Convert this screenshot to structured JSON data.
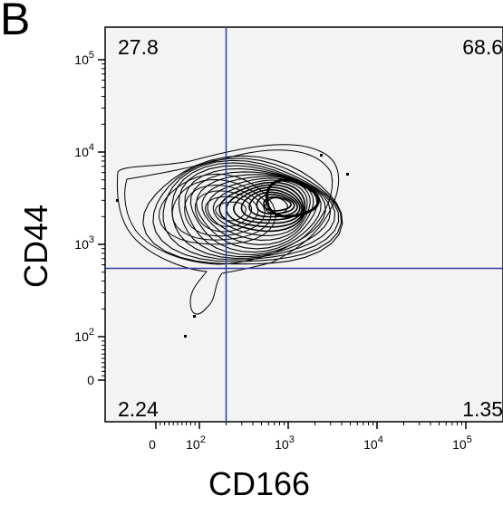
{
  "panel_label": "B",
  "chart_data": {
    "type": "contour",
    "xlabel": "CD166",
    "ylabel": "CD44",
    "x_scale": "biexponential",
    "y_scale": "biexponential",
    "x_ticks": [
      {
        "value": 0,
        "base": "0",
        "exp": ""
      },
      {
        "value": 100,
        "base": "10",
        "exp": "2"
      },
      {
        "value": 1000,
        "base": "10",
        "exp": "3"
      },
      {
        "value": 10000,
        "base": "10",
        "exp": "4"
      },
      {
        "value": 100000,
        "base": "10",
        "exp": "5"
      }
    ],
    "y_ticks": [
      {
        "value": 0,
        "base": "0",
        "exp": ""
      },
      {
        "value": 100,
        "base": "10",
        "exp": "2"
      },
      {
        "value": 1000,
        "base": "10",
        "exp": "3"
      },
      {
        "value": 10000,
        "base": "10",
        "exp": "4"
      },
      {
        "value": 100000,
        "base": "10",
        "exp": "5"
      }
    ],
    "gate": {
      "x": 200,
      "y": 550,
      "color": "#2b3a9a"
    },
    "quadrants": {
      "top_left": "27.8",
      "top_right": "68.6",
      "bottom_left": "2.24",
      "bottom_right": "1.35"
    },
    "contour_centers": [
      {
        "x": 700,
        "y": 2600
      },
      {
        "x": 120,
        "y": 2300
      }
    ]
  }
}
